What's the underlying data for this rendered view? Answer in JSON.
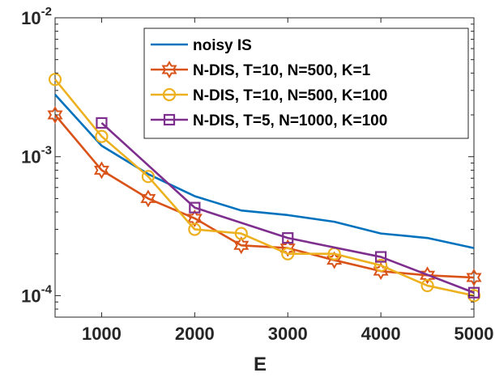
{
  "chart_data": {
    "type": "line",
    "xlabel": "E",
    "ylabel": "",
    "title": "",
    "xlim": [
      500,
      5000
    ],
    "ylim": [
      7e-05,
      0.01
    ],
    "yscale": "log",
    "grid": false,
    "legend_position": "top-right",
    "x_ticks": [
      {
        "value": 1000,
        "label": "1000"
      },
      {
        "value": 2000,
        "label": "2000"
      },
      {
        "value": 3000,
        "label": "3000"
      },
      {
        "value": 4000,
        "label": "4000"
      },
      {
        "value": 5000,
        "label": "5000"
      }
    ],
    "y_ticks": [
      {
        "value": 0.0001,
        "base": "10",
        "exp": "-4"
      },
      {
        "value": 0.001,
        "base": "10",
        "exp": "-3"
      },
      {
        "value": 0.01,
        "base": "10",
        "exp": "-2"
      }
    ],
    "series": [
      {
        "name": "noisy IS",
        "color": "#0072BD",
        "marker": "none",
        "x": [
          500,
          1000,
          1500,
          2000,
          2500,
          3000,
          3500,
          4000,
          4500,
          5000
        ],
        "y": [
          0.0028,
          0.0012,
          0.00075,
          0.00052,
          0.00041,
          0.00038,
          0.00034,
          0.00028,
          0.00026,
          0.00022
        ]
      },
      {
        "name": "N-DIS, T=10, N=500, K=1",
        "color": "#D95319",
        "marker": "hexagram",
        "x": [
          500,
          1000,
          1500,
          2000,
          2500,
          3000,
          3500,
          4000,
          4500,
          5000
        ],
        "y": [
          0.002,
          0.0008,
          0.0005,
          0.00036,
          0.00023,
          0.00022,
          0.00018,
          0.00015,
          0.00014,
          0.000135
        ]
      },
      {
        "name": "N-DIS, T=10, N=500, K=100",
        "color": "#EDB120",
        "marker": "circle",
        "x": [
          500,
          1000,
          1500,
          2000,
          2500,
          3000,
          3500,
          4000,
          4500,
          5000
        ],
        "y": [
          0.0036,
          0.0014,
          0.00072,
          0.0003,
          0.00028,
          0.0002,
          0.0002,
          0.000165,
          0.000118,
          0.0001
        ]
      },
      {
        "name": "N-DIS, T=5, N=1000, K=100",
        "color": "#7E2F8E",
        "marker": "square",
        "x": [
          1000,
          2000,
          3000,
          4000,
          5000
        ],
        "y": [
          0.00175,
          0.00043,
          0.00026,
          0.00019,
          0.000105
        ]
      }
    ]
  }
}
